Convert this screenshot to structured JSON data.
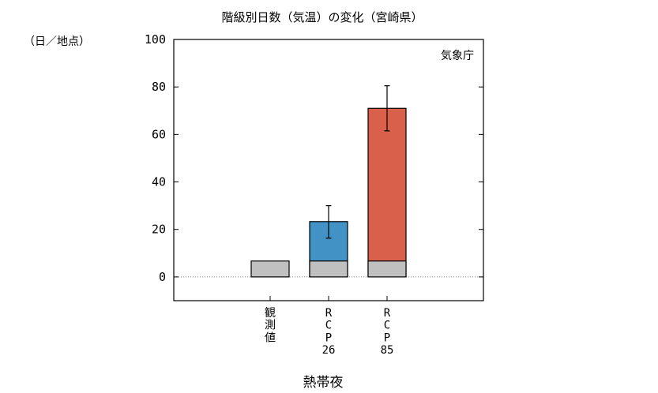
{
  "chart_data": {
    "type": "bar",
    "title": "階級別日数（気温）の変化（宮崎県）",
    "unit_label": "（日／地点）",
    "credit": "気象庁",
    "group_label": "熱帯夜",
    "ylim": [
      -10,
      100
    ],
    "yticks": [
      "100",
      "80",
      "60",
      "40",
      "20",
      "0"
    ],
    "categories": [
      {
        "id": "obs",
        "lines": [
          "観",
          "測",
          "値"
        ]
      },
      {
        "id": "rcp26",
        "lines": [
          "R",
          "C",
          "P",
          "26"
        ]
      },
      {
        "id": "rcp85",
        "lines": [
          "R",
          "C",
          "P",
          "85"
        ]
      }
    ],
    "series": [
      {
        "key": "present",
        "values": [
          6.7,
          6.7,
          6.7
        ]
      },
      {
        "key": "future",
        "values": [
          null,
          23.3,
          71.0
        ]
      }
    ],
    "error_bars": [
      null,
      {
        "low": 16.3,
        "high": 30.0
      },
      {
        "low": 61.5,
        "high": 80.5
      }
    ],
    "colors": {
      "present": "#c0c0c0",
      "rcp26": "#4292c6",
      "rcp85": "#d9604b",
      "axis": "#000000",
      "zero_line": "#888888"
    }
  }
}
